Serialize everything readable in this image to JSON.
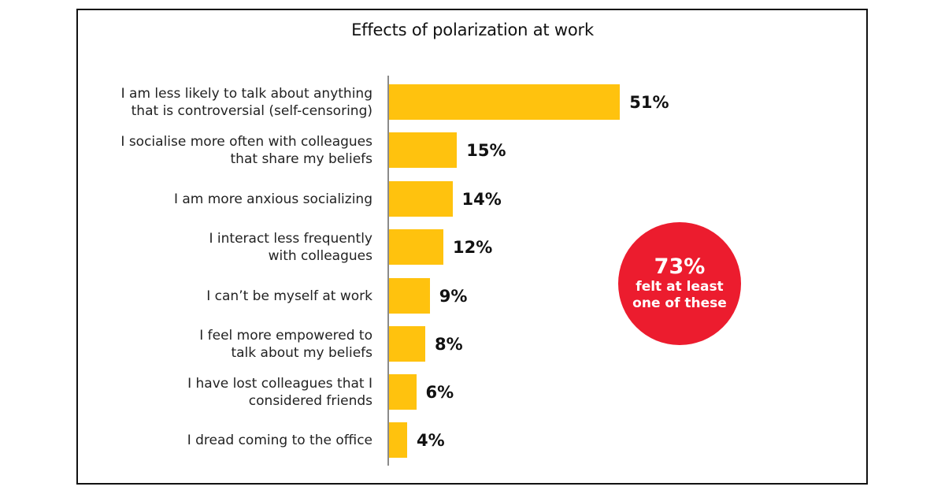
{
  "colors": {
    "bar": "#FFC20E",
    "circle": "#EC1C2E"
  },
  "chart_data": {
    "type": "bar",
    "orientation": "horizontal",
    "title": "Effects of polarization at work",
    "xlabel": "",
    "ylabel": "",
    "categories": [
      "I am less likely to talk about anything that is controversial (self-censoring)",
      "I socialise more often with colleagues that share my beliefs",
      "I am more anxious socializing",
      "I interact less frequently with colleagues",
      "I can’t be myself at work",
      "I feel more empowered to talk about my beliefs",
      "I have lost colleagues that I considered friends",
      "I dread coming to the office"
    ],
    "values": [
      51,
      15,
      14,
      12,
      9,
      8,
      6,
      4
    ],
    "unit": "%",
    "grid": false,
    "legend": null,
    "annotations": [
      {
        "text": "73% felt at least one of these",
        "shape": "circle",
        "color": "#EC1C2E"
      }
    ]
  },
  "chart": {
    "title": "Effects of polarization at work",
    "rows": [
      {
        "line1": "I am less likely to talk about anything",
        "line2": "that is controversial (self-censoring)",
        "value": 51,
        "value_label": "51%"
      },
      {
        "line1": "I socialise more often with colleagues",
        "line2": "that share my beliefs",
        "value": 15,
        "value_label": "15%"
      },
      {
        "line1": "I am more anxious socializing",
        "line2": "",
        "value": 14,
        "value_label": "14%"
      },
      {
        "line1": "I interact less frequently",
        "line2": "with colleagues",
        "value": 12,
        "value_label": "12%"
      },
      {
        "line1": "I can’t be myself at work",
        "line2": "",
        "value": 9,
        "value_label": "9%"
      },
      {
        "line1": "I feel more empowered to",
        "line2": "talk about my beliefs",
        "value": 8,
        "value_label": "8%"
      },
      {
        "line1": "I have lost colleagues that I",
        "line2": "considered friends",
        "value": 6,
        "value_label": "6%"
      },
      {
        "line1": "I dread coming to the office",
        "line2": "",
        "value": 4,
        "value_label": "4%"
      }
    ],
    "callout": {
      "big": "73%",
      "line1": "felt at least",
      "line2": "one of these"
    }
  }
}
